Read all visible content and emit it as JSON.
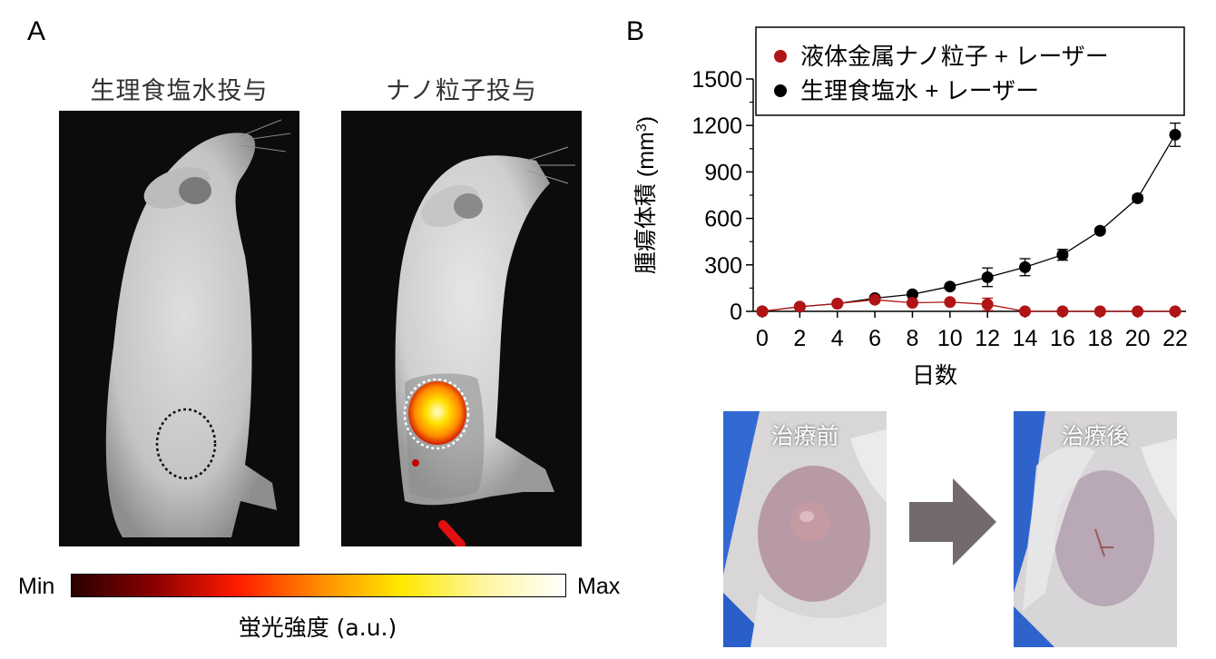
{
  "panel_a": {
    "letter": "A",
    "left_title": "生理食塩水投与",
    "right_title": "ナノ粒子投与",
    "colorbar": {
      "min_label": "Min",
      "max_label": "Max",
      "title": "蛍光強度 (a.u.)",
      "stops": [
        "#2a0000",
        "#8a0000",
        "#ff1a00",
        "#ff8a00",
        "#ffe800",
        "#fff6a0",
        "#ffffff"
      ]
    }
  },
  "panel_b": {
    "letter": "B",
    "before_label": "治療前",
    "after_label": "治療後"
  },
  "chart_data": {
    "type": "line",
    "xlabel": "日数",
    "ylabel": "腫瘍体積 (mm",
    "ylabel_sup": "3",
    "ylabel_close": ")",
    "x": [
      0,
      2,
      4,
      6,
      8,
      10,
      12,
      14,
      16,
      18,
      20,
      22
    ],
    "xlim": [
      0,
      22
    ],
    "ylim": [
      0,
      1500
    ],
    "yticks": [
      0,
      300,
      600,
      900,
      1200,
      1500
    ],
    "legend_placement": "top",
    "series": [
      {
        "name": "液体金属ナノ粒子 + レーザー",
        "color": "#b01414",
        "x": [
          0,
          2,
          4,
          6,
          8,
          10,
          12,
          14,
          16,
          18,
          20,
          22
        ],
        "values": [
          0,
          30,
          50,
          75,
          55,
          60,
          45,
          0,
          0,
          0,
          0,
          0
        ],
        "errors": [
          0,
          5,
          8,
          10,
          10,
          10,
          40,
          0,
          0,
          0,
          0,
          0
        ]
      },
      {
        "name": "生理食塩水 + レーザー",
        "color": "#000000",
        "x": [
          0,
          2,
          4,
          6,
          8,
          10,
          12,
          14,
          16,
          18,
          20,
          22
        ],
        "values": [
          0,
          30,
          50,
          85,
          110,
          160,
          220,
          285,
          365,
          520,
          730,
          1140
        ],
        "errors": [
          0,
          5,
          8,
          10,
          12,
          15,
          60,
          55,
          35,
          15,
          20,
          75
        ]
      }
    ]
  }
}
